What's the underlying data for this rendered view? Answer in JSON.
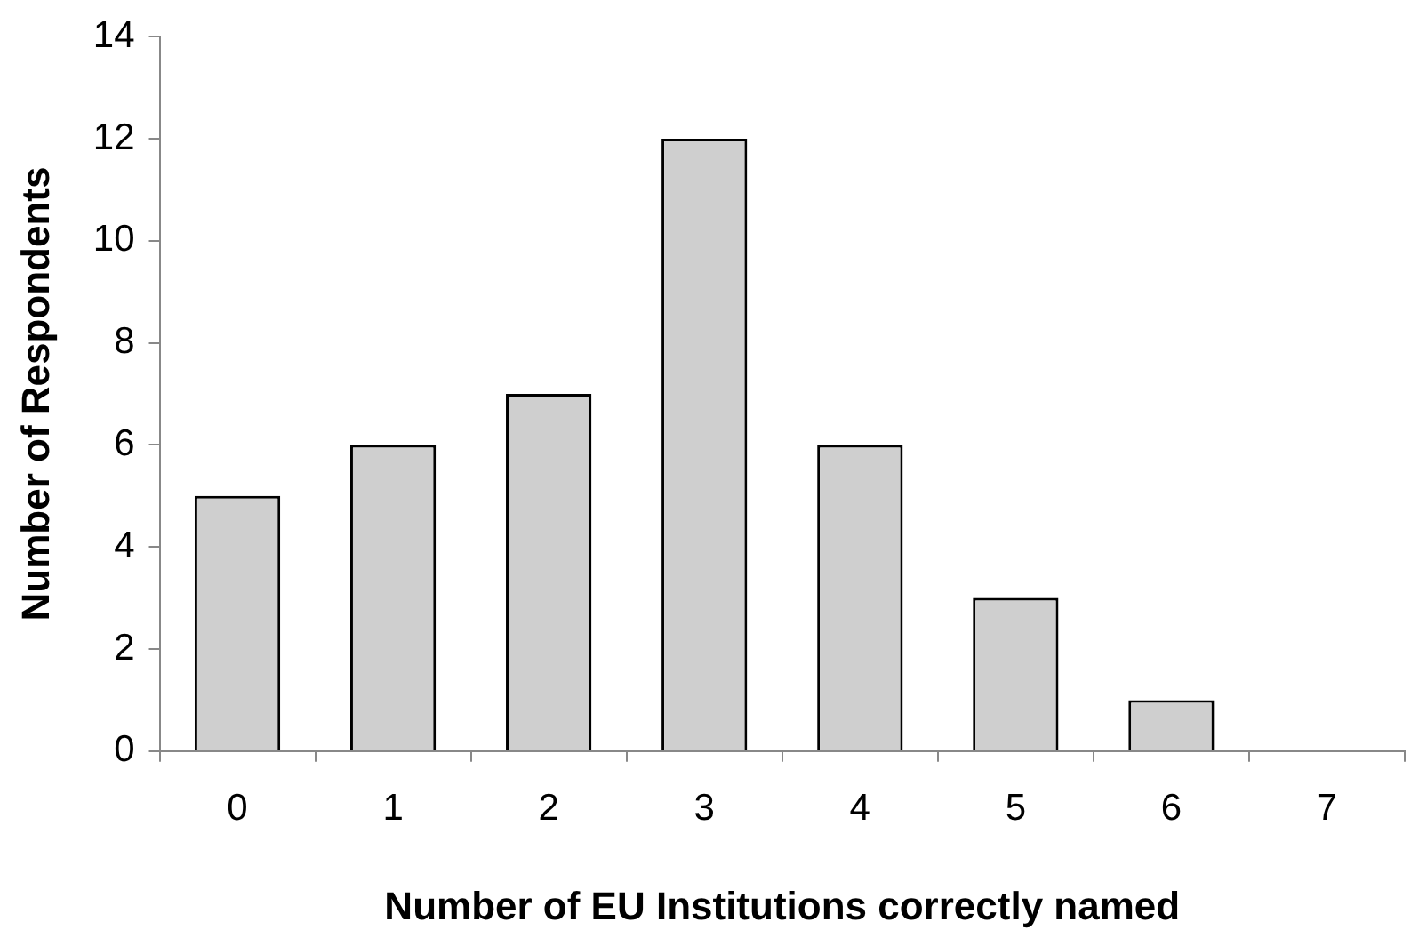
{
  "chart_data": {
    "type": "bar",
    "xlabel": "Number of EU Institutions correctly named",
    "ylabel": "Number of Respondents",
    "categories": [
      "0",
      "1",
      "2",
      "3",
      "4",
      "5",
      "6",
      "7"
    ],
    "values": [
      5,
      6,
      7,
      12,
      6,
      3,
      1,
      0
    ],
    "color": "#cfcfcf",
    "ylim": [
      0,
      14
    ],
    "yticks": [
      0,
      2,
      4,
      6,
      8,
      10,
      12,
      14
    ],
    "grid": false,
    "legend": false
  }
}
